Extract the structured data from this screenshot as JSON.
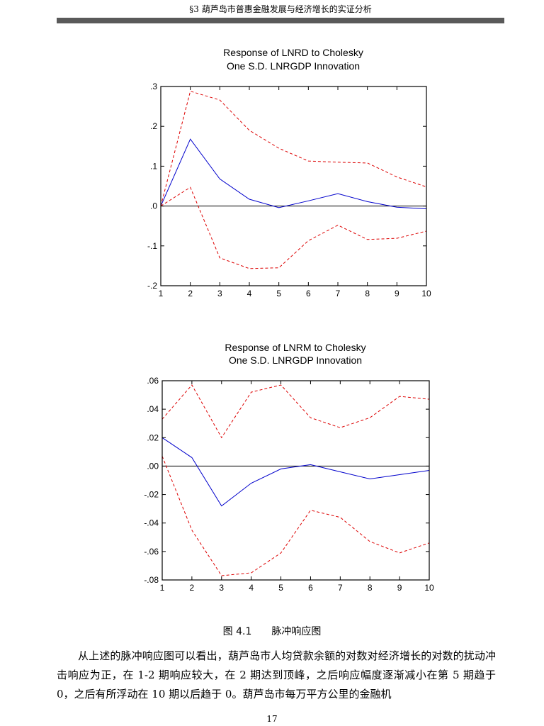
{
  "header": {
    "text": "§3 葫芦岛市普惠金融发展与经济增长的实证分析"
  },
  "chart_data": [
    {
      "type": "line",
      "title": "Response of LNRD to Cholesky",
      "subtitle": "One S.D. LNRGDP Innovation",
      "x": [
        1,
        2,
        3,
        4,
        5,
        6,
        7,
        8,
        9,
        10
      ],
      "xticks": [
        "1",
        "2",
        "3",
        "4",
        "5",
        "6",
        "7",
        "8",
        "9",
        "10"
      ],
      "ylim": [
        -0.2,
        0.3
      ],
      "yticks": [
        0.3,
        0.2,
        0.1,
        0.0,
        -0.1,
        -0.2
      ],
      "ytick_labels": [
        ".3",
        ".2",
        ".1",
        ".0",
        "-.1",
        "-.2"
      ],
      "series": [
        {
          "name": "response",
          "color": "#0000cc",
          "style": "solid",
          "values": [
            0.0,
            0.168,
            0.068,
            0.017,
            -0.004,
            0.013,
            0.031,
            0.011,
            -0.003,
            -0.007
          ]
        },
        {
          "name": "upper band",
          "color": "#dd0000",
          "style": "dashed",
          "values": [
            0.0,
            0.288,
            0.266,
            0.19,
            0.145,
            0.113,
            0.11,
            0.108,
            0.073,
            0.048
          ]
        },
        {
          "name": "lower band",
          "color": "#dd0000",
          "style": "dashed",
          "values": [
            0.0,
            0.047,
            -0.13,
            -0.157,
            -0.155,
            -0.087,
            -0.048,
            -0.084,
            -0.081,
            -0.063
          ]
        }
      ]
    },
    {
      "type": "line",
      "title": "Response of LNRM to Cholesky",
      "subtitle": "One S.D. LNRGDP Innovation",
      "x": [
        1,
        2,
        3,
        4,
        5,
        6,
        7,
        8,
        9,
        10
      ],
      "xticks": [
        "1",
        "2",
        "3",
        "4",
        "5",
        "6",
        "7",
        "8",
        "9",
        "10"
      ],
      "ylim": [
        -0.08,
        0.06
      ],
      "yticks": [
        0.06,
        0.04,
        0.02,
        0.0,
        -0.02,
        -0.04,
        -0.06,
        -0.08
      ],
      "ytick_labels": [
        ".06",
        ".04",
        ".02",
        ".00",
        "-.02",
        "-.04",
        "-.06",
        "-.08"
      ],
      "series": [
        {
          "name": "response",
          "color": "#0000cc",
          "style": "solid",
          "values": [
            0.02,
            0.006,
            -0.028,
            -0.012,
            -0.002,
            0.001,
            -0.004,
            -0.009,
            -0.006,
            -0.003
          ]
        },
        {
          "name": "upper band",
          "color": "#dd0000",
          "style": "dashed",
          "values": [
            0.033,
            0.057,
            0.02,
            0.052,
            0.057,
            0.034,
            0.027,
            0.034,
            0.049,
            0.047
          ]
        },
        {
          "name": "lower band",
          "color": "#dd0000",
          "style": "dashed",
          "values": [
            0.007,
            -0.045,
            -0.077,
            -0.075,
            -0.061,
            -0.031,
            -0.036,
            -0.053,
            -0.061,
            -0.054
          ]
        }
      ]
    }
  ],
  "caption": {
    "figure_number": "图 4.1",
    "figure_title": "脉冲响应图"
  },
  "body": {
    "paragraph": "从上述的脉冲响应图可以看出，葫芦岛市人均贷款余额的对数对经济增长的对数的扰动冲击响应为正，在 1-2 期响应较大，在 2 期达到顶峰，之后响应幅度逐渐减小在第 5 期趋于 0，之后有所浮动在 10 期以后趋于 0。葫芦岛市每万平方公里的金融机"
  },
  "page_number": "17"
}
